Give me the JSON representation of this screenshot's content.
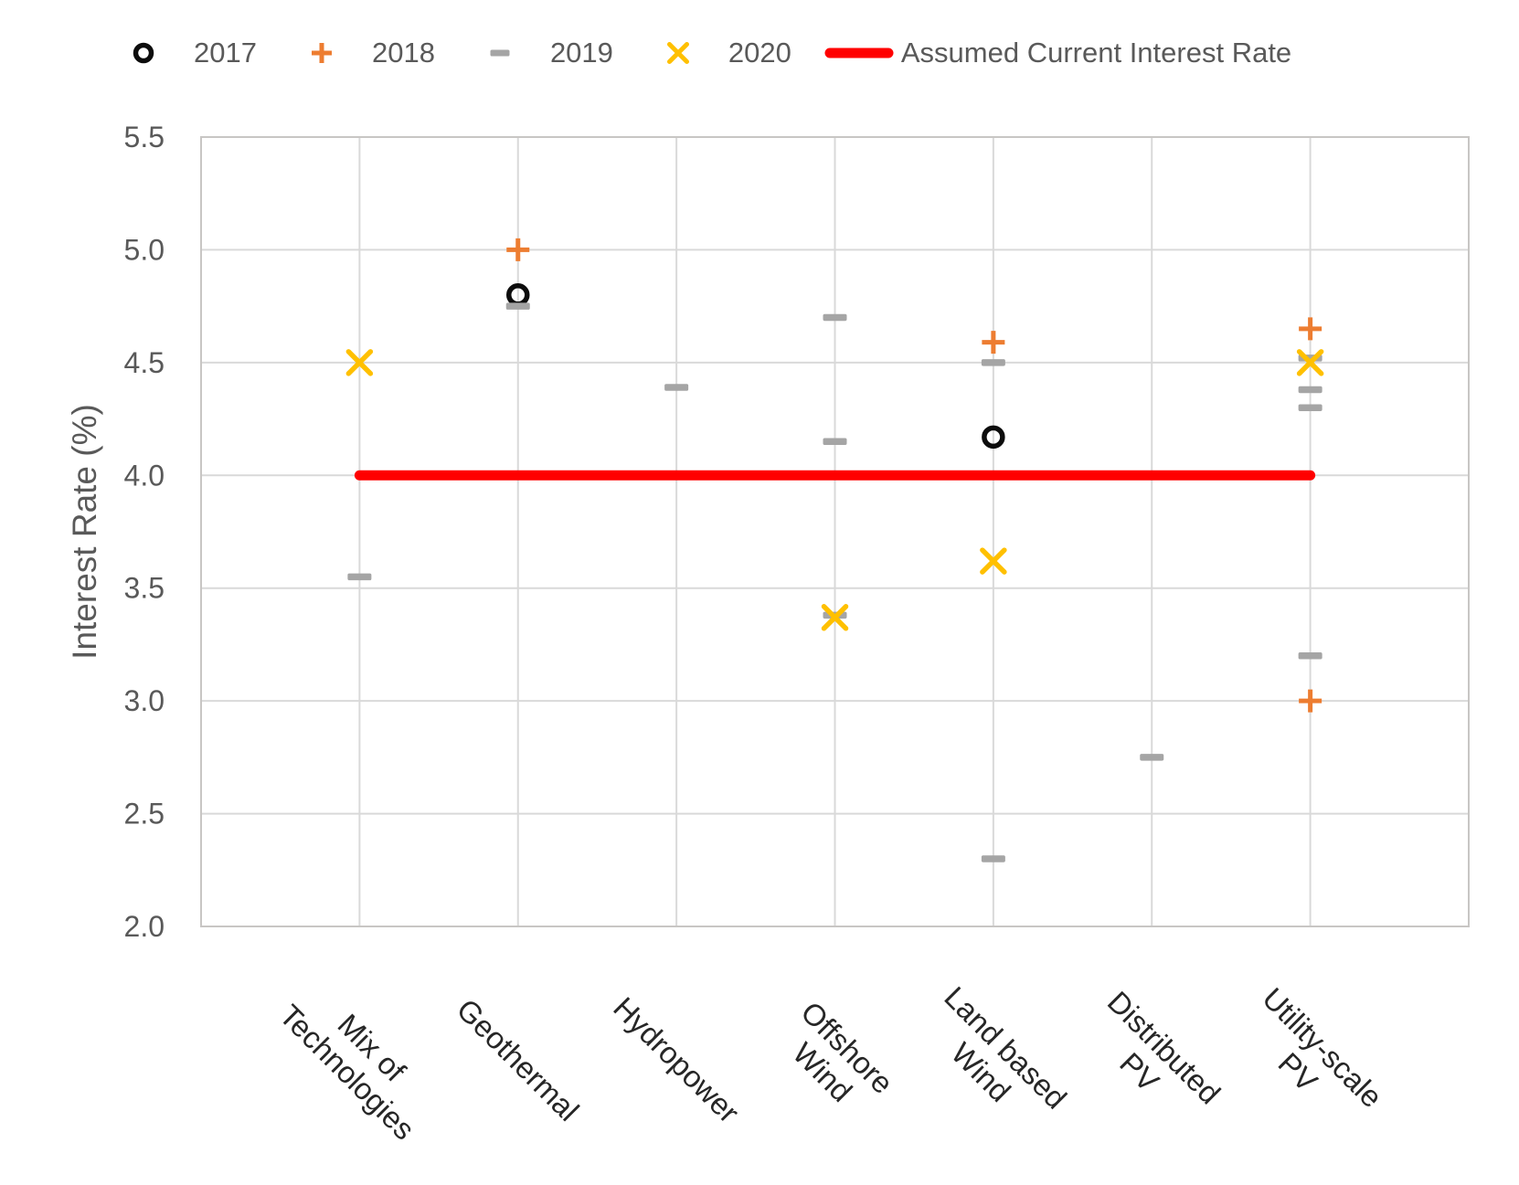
{
  "legend": {
    "items": [
      {
        "label": "2017",
        "marker": "open-circle-marker",
        "color": "#0d0d0d"
      },
      {
        "label": "2018",
        "marker": "plus-marker",
        "color": "#ed7d31"
      },
      {
        "label": "2019",
        "marker": "dash-marker",
        "color": "#a5a5a5"
      },
      {
        "label": "2020",
        "marker": "x-marker",
        "color": "#ffc000"
      },
      {
        "label": "Assumed Current Interest Rate",
        "marker": "line-marker",
        "color": "#ff0000"
      }
    ],
    "text_color": "#595959"
  },
  "chart_data": {
    "type": "scatter",
    "title": "",
    "xlabel": "",
    "ylabel": "Interest Rate (%)",
    "ylim": [
      2.0,
      5.5
    ],
    "y_tick_step": 0.5,
    "y_ticks": [
      "5.5",
      "5.0",
      "4.5",
      "4.0",
      "3.5",
      "3.0",
      "2.5",
      "2.0"
    ],
    "grid": true,
    "legend_position": "top",
    "categories": [
      "Mix of Technologies",
      "Geothermal",
      "Hydropower",
      "Offshore Wind",
      "Land based Wind",
      "Distributed PV",
      "Utility-scale PV"
    ],
    "category_label_lines": [
      [
        "Mix of",
        "Technologies"
      ],
      [
        "Geothermal"
      ],
      [
        "Hydropower"
      ],
      [
        "Offshore",
        "Wind"
      ],
      [
        "Land based",
        "Wind"
      ],
      [
        "Distributed",
        "PV"
      ],
      [
        "Utility-scale",
        "PV"
      ]
    ],
    "series": [
      {
        "name": "2017",
        "marker": "circle",
        "color": "#0d0d0d",
        "points": [
          {
            "category": "Geothermal",
            "value": 4.8
          },
          {
            "category": "Land based Wind",
            "value": 4.17
          }
        ]
      },
      {
        "name": "2018",
        "marker": "plus",
        "color": "#ed7d31",
        "points": [
          {
            "category": "Geothermal",
            "value": 5.0
          },
          {
            "category": "Land based Wind",
            "value": 4.59
          },
          {
            "category": "Utility-scale PV",
            "value": 4.65
          },
          {
            "category": "Utility-scale PV",
            "value": 3.0
          }
        ]
      },
      {
        "name": "2019",
        "marker": "dash",
        "color": "#a5a5a5",
        "points": [
          {
            "category": "Mix of Technologies",
            "value": 3.55
          },
          {
            "category": "Geothermal",
            "value": 4.75
          },
          {
            "category": "Hydropower",
            "value": 4.39
          },
          {
            "category": "Offshore Wind",
            "value": 4.7
          },
          {
            "category": "Offshore Wind",
            "value": 4.15
          },
          {
            "category": "Offshore Wind",
            "value": 3.38
          },
          {
            "category": "Land based Wind",
            "value": 4.5
          },
          {
            "category": "Land based Wind",
            "value": 2.3
          },
          {
            "category": "Distributed PV",
            "value": 2.75
          },
          {
            "category": "Utility-scale PV",
            "value": 4.52
          },
          {
            "category": "Utility-scale PV",
            "value": 4.38
          },
          {
            "category": "Utility-scale PV",
            "value": 4.3
          },
          {
            "category": "Utility-scale PV",
            "value": 3.2
          }
        ]
      },
      {
        "name": "2020",
        "marker": "x",
        "color": "#ffc000",
        "points": [
          {
            "category": "Mix of Technologies",
            "value": 4.5
          },
          {
            "category": "Offshore Wind",
            "value": 3.37
          },
          {
            "category": "Land based Wind",
            "value": 3.62
          },
          {
            "category": "Utility-scale PV",
            "value": 4.5
          }
        ]
      }
    ],
    "reference_line": {
      "name": "Assumed Current Interest Rate",
      "value": 4.0,
      "color": "#ff0000",
      "x_start_category": "Mix of Technologies",
      "x_end_category": "Utility-scale PV"
    },
    "colors": {
      "gridline": "#d9d9d9",
      "plot_border": "#c8c6c4",
      "tick_text": "#595959",
      "axis_title_text": "#595959",
      "category_text": "#262626"
    }
  }
}
